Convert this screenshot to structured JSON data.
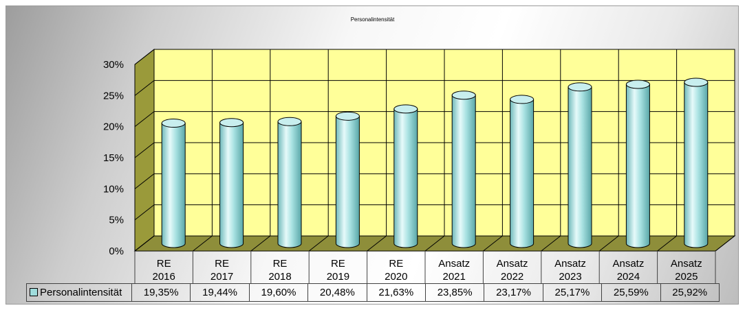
{
  "chart_data": {
    "type": "bar",
    "title": "Personalintensität",
    "categories": [
      [
        "RE",
        "2016"
      ],
      [
        "RE",
        "2017"
      ],
      [
        "RE",
        "2018"
      ],
      [
        "RE",
        "2019"
      ],
      [
        "RE",
        "2020"
      ],
      [
        "Ansatz",
        "2021"
      ],
      [
        "Ansatz",
        "2022"
      ],
      [
        "Ansatz",
        "2023"
      ],
      [
        "Ansatz",
        "2024"
      ],
      [
        "Ansatz",
        "2025"
      ]
    ],
    "series": [
      {
        "name": "Personalintensität",
        "values": [
          19.35,
          19.44,
          19.6,
          20.48,
          21.63,
          23.85,
          23.17,
          25.17,
          25.59,
          25.92
        ],
        "value_labels": [
          "19,35%",
          "19,44%",
          "19,60%",
          "20,48%",
          "21,63%",
          "23,85%",
          "23,17%",
          "25,17%",
          "25,59%",
          "25,92%"
        ]
      }
    ],
    "yticks": [
      "0%",
      "5%",
      "10%",
      "15%",
      "20%",
      "25%",
      "30%"
    ],
    "ylim": [
      0,
      30
    ],
    "grid": true,
    "legend": "data-table",
    "colors": {
      "bar": "#9fdcdc",
      "wall": "#ffff99",
      "floor": "#8e8e3a"
    }
  }
}
